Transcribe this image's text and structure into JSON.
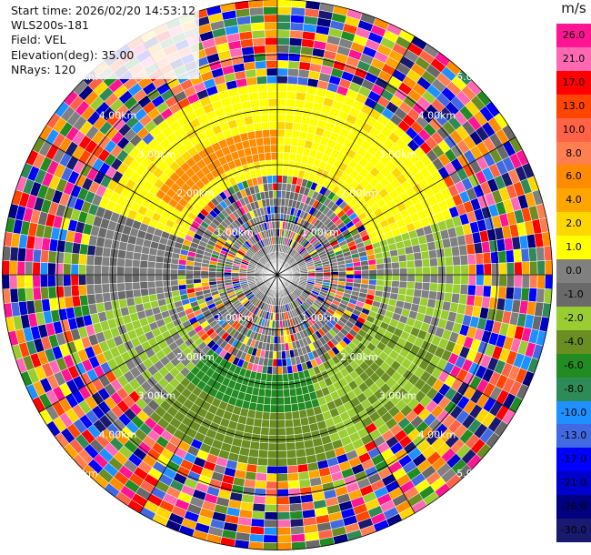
{
  "info": {
    "start_time": "Start time: 2026/02/20 14:53:12",
    "site": "WLS200s-181",
    "field": "Field: VEL",
    "elevation": "Elevation(deg): 35.00",
    "nrays": "NRays: 120"
  },
  "colorbar": {
    "unit": "m/s",
    "ticks": [
      "26.0",
      "21.0",
      "17.0",
      "13.0",
      "10.0",
      "8.0",
      "6.0",
      "4.0",
      "2.0",
      "1.0",
      "0.0",
      "-1.0",
      "-2.0",
      "-4.0",
      "-6.0",
      "-8.0",
      "-10.0",
      "-13.0",
      "-17.0",
      "-21.0",
      "-26.0",
      "-30.0"
    ],
    "colors": [
      "#ff1493",
      "#ff69b4",
      "#ff0000",
      "#ff4500",
      "#ff6347",
      "#ff7f50",
      "#ff8c00",
      "#ffa500",
      "#ffd700",
      "#ffff00",
      "#808080",
      "#696969",
      "#9acd32",
      "#6b8e23",
      "#228b22",
      "#2e8b57",
      "#1e90ff",
      "#4169e1",
      "#0000ff",
      "#0000cd",
      "#000080",
      "#191970"
    ]
  },
  "range_labels": [
    "1.00km",
    "2.00km",
    "3.00km",
    "4.00km",
    "5.00km"
  ]
}
